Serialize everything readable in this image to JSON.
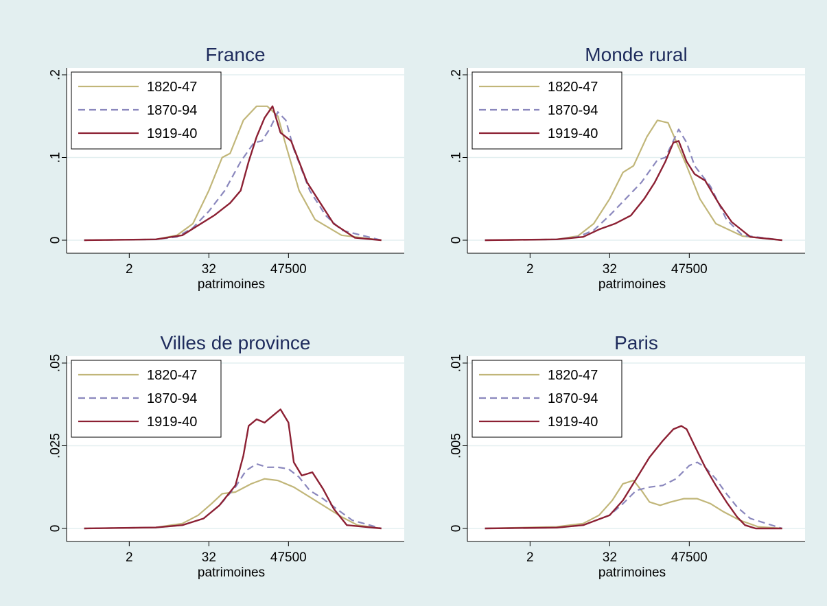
{
  "colors": {
    "outer_background": "#e3eff0",
    "plot_background": "#ffffff",
    "gridline": "#e3eff0",
    "axis": "#000000",
    "title": "#1e2b5c",
    "series_1820_47": "#c1b679",
    "series_1870_94": "#8a87bd",
    "series_1919_40": "#8c2033"
  },
  "chart_data": [
    {
      "type": "line",
      "title": "France",
      "xlabel": "patrimoines",
      "ylabel": "",
      "x_tick_labels": [
        "2",
        "32",
        "47500"
      ],
      "x_tick_positions": [
        2,
        5,
        8
      ],
      "xlim": [
        0,
        12
      ],
      "ylim": [
        0,
        0.2
      ],
      "y_ticks": [
        0,
        0.1,
        0.2
      ],
      "y_tick_labels": [
        "0",
        ".1",
        ".2"
      ],
      "grid": true,
      "legend_position": "top-left",
      "series": [
        {
          "name": "1820-47",
          "style": "solid",
          "x": [
            0.3,
            3,
            3.8,
            4.4,
            5,
            5.5,
            5.8,
            6.3,
            6.8,
            7.2,
            7.6,
            7.9,
            8.4,
            9,
            10,
            11.5
          ],
          "y": [
            0,
            0.001,
            0.006,
            0.02,
            0.06,
            0.1,
            0.105,
            0.145,
            0.162,
            0.162,
            0.15,
            0.115,
            0.06,
            0.025,
            0.006,
            0
          ]
        },
        {
          "name": "1870-94",
          "style": "dashed",
          "x": [
            0.3,
            3,
            3.8,
            4.4,
            5,
            5.6,
            6.2,
            6.7,
            7,
            7.3,
            7.6,
            7.9,
            8.2,
            8.8,
            9.4,
            10,
            11.5
          ],
          "y": [
            0,
            0.001,
            0.004,
            0.015,
            0.035,
            0.06,
            0.095,
            0.118,
            0.12,
            0.135,
            0.155,
            0.145,
            0.11,
            0.06,
            0.03,
            0.012,
            0
          ]
        },
        {
          "name": "1919-40",
          "style": "solid",
          "x": [
            0.3,
            3,
            4,
            4.6,
            5.2,
            5.8,
            6.2,
            6.5,
            6.8,
            7.1,
            7.4,
            7.7,
            8.1,
            8.7,
            9.2,
            9.7,
            10.5,
            11.5
          ],
          "y": [
            0,
            0.001,
            0.006,
            0.018,
            0.03,
            0.045,
            0.06,
            0.095,
            0.125,
            0.148,
            0.162,
            0.13,
            0.12,
            0.07,
            0.045,
            0.02,
            0.003,
            0
          ]
        }
      ]
    },
    {
      "type": "line",
      "title": "Monde rural",
      "xlabel": "patrimoines",
      "ylabel": "",
      "x_tick_labels": [
        "2",
        "32",
        "47500"
      ],
      "x_tick_positions": [
        2,
        5,
        8
      ],
      "xlim": [
        0,
        12
      ],
      "ylim": [
        0,
        0.2
      ],
      "y_ticks": [
        0,
        0.1,
        0.2
      ],
      "y_tick_labels": [
        "0",
        ".1",
        ".2"
      ],
      "grid": true,
      "legend_position": "top-left",
      "series": [
        {
          "name": "1820-47",
          "style": "solid",
          "x": [
            0.3,
            3,
            3.8,
            4.4,
            5,
            5.5,
            5.9,
            6.4,
            6.8,
            7.2,
            7.5,
            7.9,
            8.4,
            9,
            10,
            11.5
          ],
          "y": [
            0,
            0.001,
            0.005,
            0.02,
            0.05,
            0.082,
            0.09,
            0.125,
            0.145,
            0.142,
            0.12,
            0.09,
            0.05,
            0.02,
            0.005,
            0
          ]
        },
        {
          "name": "1870-94",
          "style": "dashed",
          "x": [
            0.3,
            3,
            3.8,
            4.4,
            5,
            5.6,
            6.2,
            6.8,
            7.1,
            7.4,
            7.6,
            7.9,
            8.2,
            8.8,
            9.4,
            10,
            11.5
          ],
          "y": [
            0,
            0.001,
            0.004,
            0.012,
            0.03,
            0.05,
            0.07,
            0.097,
            0.1,
            0.12,
            0.134,
            0.118,
            0.09,
            0.065,
            0.025,
            0.006,
            0
          ]
        },
        {
          "name": "1919-40",
          "style": "solid",
          "x": [
            0.3,
            3,
            4,
            4.6,
            5.2,
            5.8,
            6.3,
            6.7,
            7.1,
            7.4,
            7.6,
            7.9,
            8.2,
            8.6,
            9.1,
            9.6,
            10.3,
            11.5
          ],
          "y": [
            0,
            0.001,
            0.004,
            0.013,
            0.02,
            0.03,
            0.05,
            0.07,
            0.095,
            0.118,
            0.12,
            0.095,
            0.08,
            0.072,
            0.045,
            0.022,
            0.004,
            0
          ]
        }
      ]
    },
    {
      "type": "line",
      "title": "Villes de province",
      "xlabel": "patrimoines",
      "ylabel": "",
      "x_tick_labels": [
        "2",
        "32",
        "47500"
      ],
      "x_tick_positions": [
        2,
        5,
        8
      ],
      "xlim": [
        0,
        12
      ],
      "ylim": [
        0,
        0.05
      ],
      "y_ticks": [
        0,
        0.025,
        0.05
      ],
      "y_tick_labels": [
        "0",
        ".025",
        ".05"
      ],
      "grid": true,
      "legend_position": "top-left",
      "series": [
        {
          "name": "1820-47",
          "style": "solid",
          "x": [
            0.3,
            3,
            4,
            4.6,
            5.1,
            5.5,
            6,
            6.6,
            7.1,
            7.6,
            8.2,
            8.8,
            9.4,
            10,
            10.6,
            11.5
          ],
          "y": [
            0,
            0.0003,
            0.0015,
            0.004,
            0.0075,
            0.0105,
            0.011,
            0.0135,
            0.015,
            0.0145,
            0.0125,
            0.0095,
            0.0065,
            0.0035,
            0.001,
            0
          ]
        },
        {
          "name": "1870-94",
          "style": "dashed",
          "x": [
            0.3,
            3,
            4,
            4.8,
            5.4,
            6,
            6.4,
            6.8,
            7.2,
            7.6,
            8,
            8.4,
            8.8,
            9.3,
            9.8,
            10.4,
            11.5
          ],
          "y": [
            0,
            0.0003,
            0.001,
            0.003,
            0.007,
            0.0125,
            0.0175,
            0.0195,
            0.0185,
            0.0185,
            0.018,
            0.0155,
            0.0115,
            0.009,
            0.006,
            0.0025,
            0
          ]
        },
        {
          "name": "1919-40",
          "style": "solid",
          "x": [
            0.3,
            3,
            4,
            4.8,
            5.4,
            6,
            6.3,
            6.5,
            6.8,
            7.1,
            7.4,
            7.7,
            8,
            8.2,
            8.5,
            8.9,
            9.3,
            9.7,
            10.2,
            11.5
          ],
          "y": [
            0,
            0.0003,
            0.001,
            0.003,
            0.007,
            0.013,
            0.022,
            0.031,
            0.033,
            0.032,
            0.034,
            0.036,
            0.032,
            0.02,
            0.016,
            0.017,
            0.012,
            0.006,
            0.001,
            0
          ]
        }
      ]
    },
    {
      "type": "line",
      "title": "Paris",
      "xlabel": "patrimoines",
      "ylabel": "",
      "x_tick_labels": [
        "2",
        "32",
        "47500"
      ],
      "x_tick_positions": [
        2,
        5,
        8
      ],
      "xlim": [
        0,
        12
      ],
      "ylim": [
        0,
        0.01
      ],
      "y_ticks": [
        0,
        0.005,
        0.01
      ],
      "y_tick_labels": [
        "0",
        ".005",
        ".01"
      ],
      "grid": true,
      "legend_position": "top-left",
      "series": [
        {
          "name": "1820-47",
          "style": "solid",
          "x": [
            0.3,
            3,
            4,
            4.6,
            5.1,
            5.5,
            5.9,
            6.2,
            6.5,
            6.9,
            7.3,
            7.8,
            8.3,
            8.8,
            9.3,
            9.9,
            10.6,
            11.5
          ],
          "y": [
            0,
            0.0001,
            0.0003,
            0.0008,
            0.0017,
            0.0027,
            0.0029,
            0.0023,
            0.0016,
            0.0014,
            0.0016,
            0.0018,
            0.0018,
            0.0015,
            0.001,
            0.0005,
            0.0001,
            0
          ]
        },
        {
          "name": "1870-94",
          "style": "dashed",
          "x": [
            0.3,
            3,
            4,
            5,
            5.5,
            6,
            6.5,
            7,
            7.5,
            8,
            8.3,
            8.6,
            9,
            9.4,
            9.8,
            10.3,
            11.5
          ],
          "y": [
            0,
            5e-05,
            0.0002,
            0.0008,
            0.0015,
            0.0023,
            0.0025,
            0.0026,
            0.003,
            0.0038,
            0.004,
            0.0037,
            0.003,
            0.0021,
            0.0013,
            0.0006,
            0
          ]
        },
        {
          "name": "1919-40",
          "style": "solid",
          "x": [
            0.3,
            3,
            4,
            5,
            5.5,
            6,
            6.5,
            7,
            7.4,
            7.7,
            7.9,
            8.2,
            8.6,
            9,
            9.4,
            9.8,
            10.1,
            10.5,
            11.5
          ],
          "y": [
            0,
            5e-05,
            0.0002,
            0.0008,
            0.0017,
            0.003,
            0.0043,
            0.0053,
            0.006,
            0.0062,
            0.006,
            0.005,
            0.0037,
            0.0026,
            0.0016,
            0.0007,
            0.0002,
            0,
            0
          ]
        }
      ]
    }
  ]
}
